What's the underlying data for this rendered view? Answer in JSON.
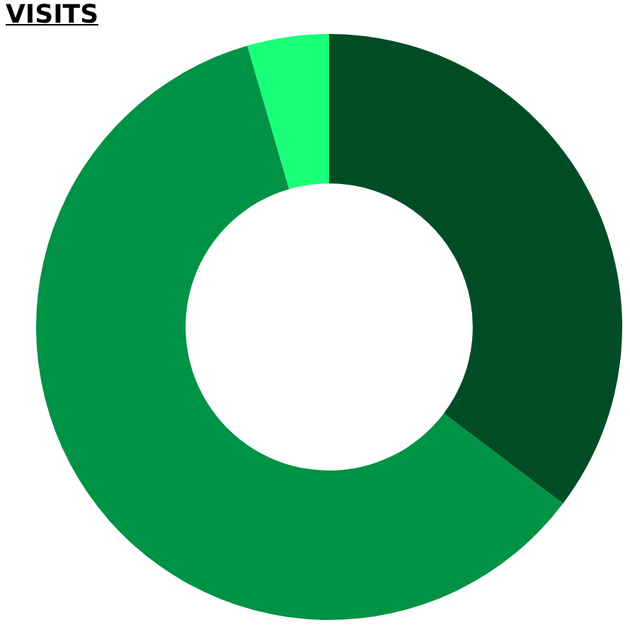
{
  "chart_data": {
    "type": "donut",
    "title": "VISITS",
    "categories": [
      null,
      null,
      null
    ],
    "values": [
      35.3,
      60.2,
      4.5
    ],
    "colors": [
      "#004d25",
      "#009245",
      "#1aff7a"
    ],
    "legend": false
  }
}
